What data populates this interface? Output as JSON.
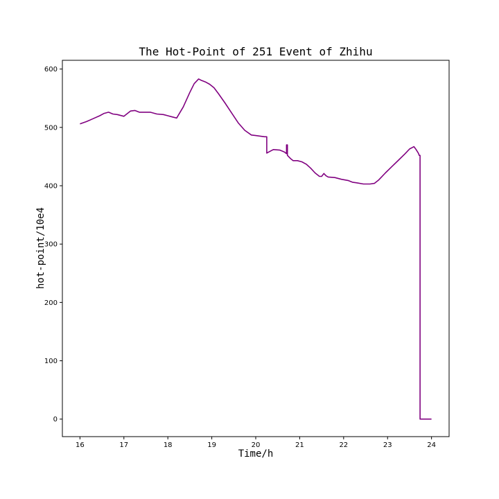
{
  "chart_data": {
    "type": "line",
    "title": "The Hot-Point of 251 Event of Zhihu",
    "xlabel": "Time/h",
    "ylabel": "hot-point/10e4",
    "xlim": [
      15.6,
      24.4
    ],
    "ylim": [
      -30,
      615
    ],
    "xticks": [
      16,
      17,
      18,
      19,
      20,
      21,
      22,
      23,
      24
    ],
    "yticks": [
      0,
      100,
      200,
      300,
      400,
      500,
      600
    ],
    "grid": false,
    "legend": "none",
    "colors": {
      "line": "#800080",
      "axes": "#000000",
      "background": "#ffffff"
    },
    "series": [
      {
        "x": [
          16.0,
          16.15,
          16.3,
          16.45,
          16.55,
          16.65,
          16.75,
          16.85,
          17.0,
          17.05,
          17.15,
          17.25,
          17.35,
          17.45,
          17.6,
          17.75,
          17.9,
          18.0,
          18.1,
          18.2,
          18.35,
          18.5,
          18.6,
          18.7,
          18.75,
          18.85,
          18.95,
          19.05,
          19.15,
          19.3,
          19.45,
          19.6,
          19.75,
          19.9,
          20.0,
          20.1,
          20.2,
          20.25,
          20.25,
          20.3,
          20.4,
          20.55,
          20.65,
          20.7,
          20.7,
          20.72,
          20.72,
          20.8,
          20.85,
          20.95,
          21.05,
          21.15,
          21.25,
          21.35,
          21.45,
          21.5,
          21.55,
          21.6,
          21.65,
          21.8,
          21.95,
          22.1,
          22.2,
          22.3,
          22.45,
          22.6,
          22.7,
          22.8,
          22.95,
          23.1,
          23.25,
          23.4,
          23.5,
          23.6,
          23.65,
          23.7,
          23.72,
          23.72,
          23.74,
          23.74,
          24.0
        ],
        "y": [
          506,
          510,
          515,
          520,
          524,
          526,
          523,
          522,
          519,
          522,
          528,
          529,
          526,
          526,
          526,
          523,
          522,
          520,
          518,
          516,
          535,
          560,
          575,
          583,
          581,
          578,
          574,
          568,
          558,
          542,
          525,
          508,
          495,
          487,
          486,
          485,
          484,
          484,
          456,
          458,
          462,
          461,
          458,
          455,
          470,
          470,
          452,
          446,
          443,
          443,
          441,
          437,
          430,
          422,
          416,
          416,
          421,
          417,
          415,
          414,
          411,
          409,
          406,
          405,
          403,
          403,
          404,
          410,
          422,
          433,
          444,
          455,
          463,
          467,
          462,
          456,
          452,
          452,
          452,
          0,
          0
        ]
      }
    ]
  }
}
